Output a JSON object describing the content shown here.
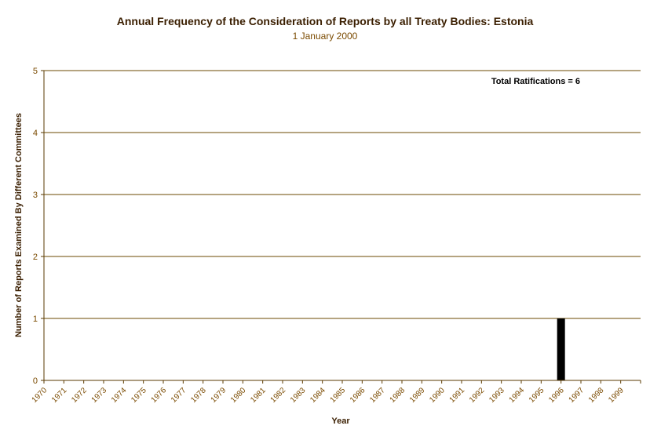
{
  "chart_data": {
    "type": "bar",
    "title": "Annual Frequency of the Consideration of Reports by all Treaty Bodies: Estonia",
    "subtitle": "1 January 2000",
    "xlabel": "Year",
    "ylabel": "Number of Reports Examined By Different Committees",
    "ylim": [
      0,
      5
    ],
    "yticks": [
      "0",
      "1",
      "2",
      "3",
      "4",
      "5"
    ],
    "grid": true,
    "annotation": "Total Ratifications = 6",
    "categories": [
      "1970",
      "1971",
      "1972",
      "1973",
      "1974",
      "1975",
      "1976",
      "1977",
      "1978",
      "1979",
      "1980",
      "1981",
      "1982",
      "1983",
      "1984",
      "1985",
      "1986",
      "1987",
      "1988",
      "1989",
      "1990",
      "1991",
      "1992",
      "1993",
      "1994",
      "1995",
      "1996",
      "1997",
      "1998",
      "1999"
    ],
    "values": [
      0,
      0,
      0,
      0,
      0,
      0,
      0,
      0,
      0,
      0,
      0,
      0,
      0,
      0,
      0,
      0,
      0,
      0,
      0,
      0,
      0,
      0,
      0,
      0,
      0,
      1,
      0,
      0,
      0,
      0
    ],
    "colors": {
      "bar": "#000000",
      "grid": "#6b4a00",
      "text": "#7a4a00"
    }
  }
}
